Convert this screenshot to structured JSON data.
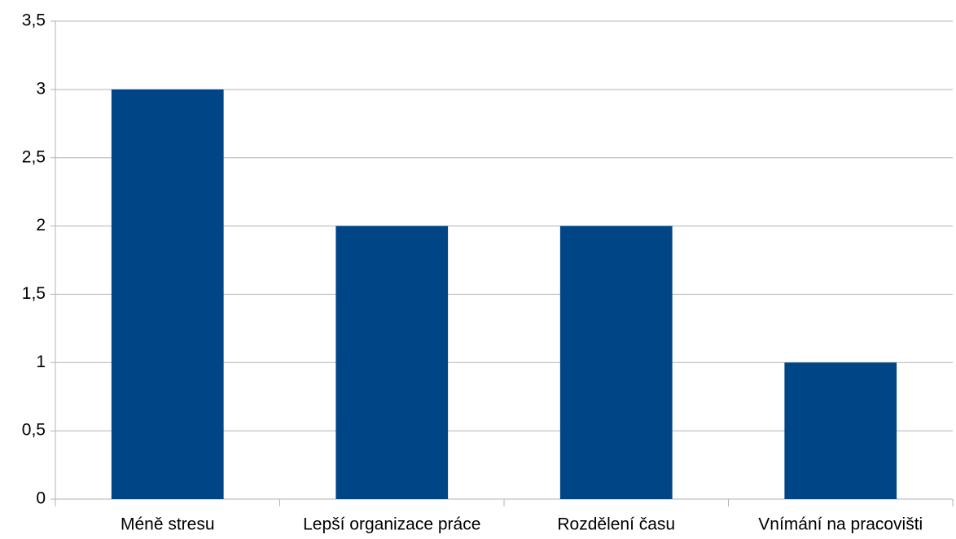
{
  "chart_data": {
    "type": "bar",
    "categories": [
      "Méně stresu",
      "Lepší organizace práce",
      "Rozdělení času",
      "Vnímání na pracovišti"
    ],
    "values": [
      3,
      2,
      2,
      1
    ],
    "color": "#004586",
    "ylim": [
      0,
      3.5
    ],
    "yticks": [
      0,
      {
        "value": 0.5,
        "label": "0,5"
      },
      1,
      {
        "value": 1.5,
        "label": "1,5"
      },
      2,
      {
        "value": 2.5,
        "label": "2,5"
      },
      3,
      {
        "value": 3.5,
        "label": "3,5"
      }
    ],
    "grid": true
  }
}
